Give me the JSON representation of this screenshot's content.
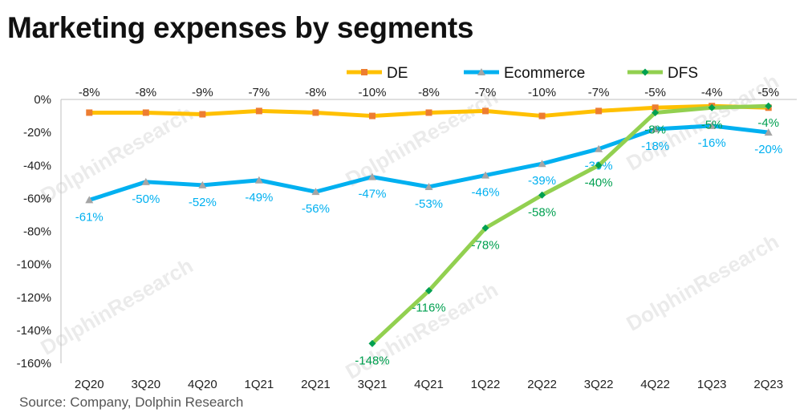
{
  "title": "Marketing expenses by segments",
  "source": "Source: Company,  Dolphin Research",
  "watermark": "DolphinResearch",
  "chart_data": {
    "type": "line",
    "categories": [
      "2Q20",
      "3Q20",
      "4Q20",
      "1Q21",
      "2Q21",
      "3Q21",
      "4Q21",
      "1Q22",
      "2Q22",
      "3Q22",
      "4Q22",
      "1Q23",
      "2Q23"
    ],
    "ylim": [
      -160,
      0
    ],
    "yticks": [
      0,
      -20,
      -40,
      -60,
      -80,
      -100,
      -120,
      -140,
      -160
    ],
    "ytick_labels": [
      "0%",
      "-20%",
      "-40%",
      "-60%",
      "-80%",
      "-100%",
      "-120%",
      "-140%",
      "-160%"
    ],
    "legend_position": "top",
    "grid": false,
    "series": [
      {
        "name": "DE",
        "color": "#FFC000",
        "marker_color": "#ED7D31",
        "marker": "square",
        "values": [
          -8,
          -8,
          -9,
          -7,
          -8,
          -10,
          -8,
          -7,
          -10,
          -7,
          -5,
          -4,
          -5
        ],
        "labels": [
          "-8%",
          "-8%",
          "-9%",
          "-7%",
          "-8%",
          "-10%",
          "-8%",
          "-7%",
          "-10%",
          "-7%",
          "-5%",
          "-4%",
          "-5%"
        ]
      },
      {
        "name": "Ecommerce",
        "color": "#00B0F0",
        "marker_color": "#A5A5A5",
        "marker": "triangle",
        "values": [
          -61,
          -50,
          -52,
          -49,
          -56,
          -47,
          -53,
          -46,
          -39,
          -30,
          -18,
          -16,
          -20
        ],
        "labels": [
          "-61%",
          "-50%",
          "-52%",
          "-49%",
          "-56%",
          "-47%",
          "-53%",
          "-46%",
          "-39%",
          "-30%",
          "-18%",
          "-16%",
          "-20%"
        ]
      },
      {
        "name": "DFS",
        "color": "#92D050",
        "marker_color": "#00A050",
        "marker": "diamond",
        "values": [
          null,
          null,
          null,
          null,
          null,
          -148,
          -116,
          -78,
          -58,
          -40,
          -8,
          -5,
          -4
        ],
        "labels": [
          "",
          "",
          "",
          "",
          "",
          "-148%",
          "-116%",
          "-78%",
          "-58%",
          "-40%",
          "-8%",
          "-5%",
          "-4%"
        ]
      }
    ]
  }
}
